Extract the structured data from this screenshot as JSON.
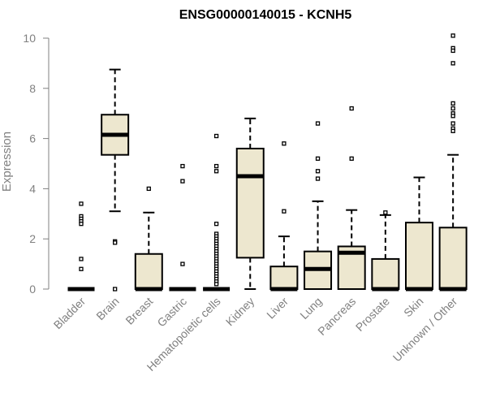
{
  "chart_data": {
    "type": "box",
    "title": "ENSG00000140015 - KCNH5",
    "xlabel": "",
    "ylabel": "Expression",
    "ylim": [
      0,
      10
    ],
    "yticks": [
      0,
      2,
      4,
      6,
      8,
      10
    ],
    "grid": false,
    "legend": "none",
    "colors": {
      "box_fill": "#ede7cf",
      "outline": "#000000",
      "axis": "#808080"
    },
    "categories": [
      "Bladder",
      "Brain",
      "Breast",
      "Gastric",
      "Hematopoietic cells",
      "Kidney",
      "Liver",
      "Lung",
      "Pancreas",
      "Prostate",
      "Skin",
      "Unknown / Other"
    ],
    "boxes": [
      {
        "category": "Bladder",
        "q1": 0,
        "median": 0,
        "q3": 0,
        "whisker_low": 0,
        "whisker_high": 0,
        "outliers": [
          3.4,
          2.9,
          2.8,
          2.7,
          2.6,
          1.2,
          0.8
        ]
      },
      {
        "category": "Brain",
        "q1": 5.35,
        "median": 6.15,
        "q3": 6.95,
        "whisker_low": 3.1,
        "whisker_high": 8.75,
        "outliers": [
          1.9,
          1.85,
          0
        ]
      },
      {
        "category": "Breast",
        "q1": 0,
        "median": 0,
        "q3": 1.4,
        "whisker_low": 0,
        "whisker_high": 3.05,
        "outliers": [
          4.0
        ]
      },
      {
        "category": "Gastric",
        "q1": 0,
        "median": 0,
        "q3": 0,
        "whisker_low": 0,
        "whisker_high": 0,
        "outliers": [
          4.9,
          4.3,
          1.0
        ]
      },
      {
        "category": "Hematopoietic cells",
        "q1": 0,
        "median": 0,
        "q3": 0,
        "whisker_low": 0,
        "whisker_high": 0,
        "outliers": [
          6.1,
          4.9,
          4.7,
          2.6,
          2.2,
          2.1,
          2.0,
          1.9,
          1.8,
          1.7,
          1.6,
          1.5,
          1.4,
          1.3,
          1.2,
          1.1,
          1.0,
          0.9,
          0.8,
          0.7,
          0.6,
          0.5,
          0.4,
          0.3,
          0.2
        ]
      },
      {
        "category": "Kidney",
        "q1": 1.25,
        "median": 4.5,
        "q3": 5.6,
        "whisker_low": 0,
        "whisker_high": 6.8,
        "outliers": []
      },
      {
        "category": "Liver",
        "q1": 0,
        "median": 0,
        "q3": 0.9,
        "whisker_low": 0,
        "whisker_high": 2.1,
        "outliers": [
          5.8,
          3.1
        ]
      },
      {
        "category": "Lung",
        "q1": 0,
        "median": 0.8,
        "q3": 1.5,
        "whisker_low": 0,
        "whisker_high": 3.5,
        "outliers": [
          6.6,
          5.2,
          4.7,
          4.4
        ]
      },
      {
        "category": "Pancreas",
        "q1": 0,
        "median": 1.45,
        "q3": 1.7,
        "whisker_low": 0,
        "whisker_high": 3.15,
        "outliers": [
          7.2,
          5.2
        ]
      },
      {
        "category": "Prostate",
        "q1": 0,
        "median": 0,
        "q3": 1.2,
        "whisker_low": 0,
        "whisker_high": 2.95,
        "outliers": [
          3.05
        ]
      },
      {
        "category": "Skin",
        "q1": 0,
        "median": 0,
        "q3": 2.65,
        "whisker_low": 0,
        "whisker_high": 4.45,
        "outliers": []
      },
      {
        "category": "Unknown / Other",
        "q1": 0,
        "median": 0,
        "q3": 2.45,
        "whisker_low": 0,
        "whisker_high": 5.35,
        "outliers": [
          10.1,
          9.6,
          9.5,
          9.0,
          7.4,
          7.2,
          7.0,
          6.9,
          6.6,
          6.4,
          6.3
        ]
      }
    ]
  }
}
